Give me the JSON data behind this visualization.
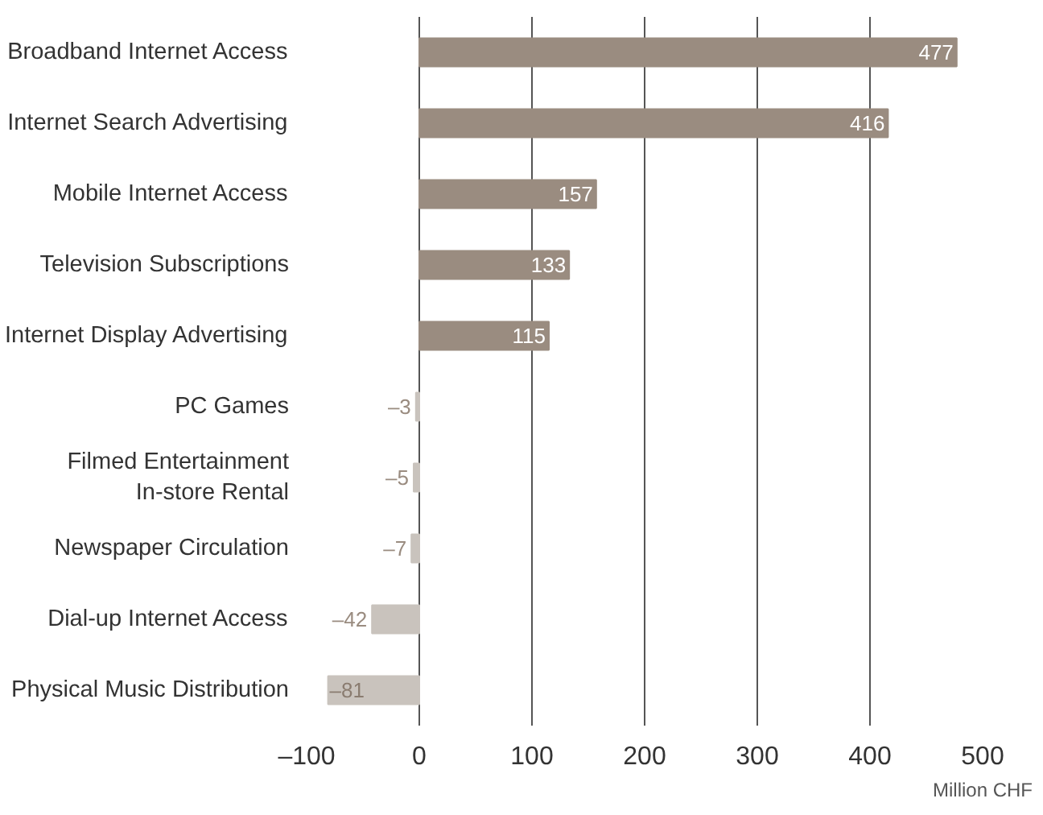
{
  "chart_data": {
    "type": "bar",
    "orientation": "horizontal",
    "categories": [
      "Broadband Internet Access",
      "Internet Search Advertising",
      "Mobile Internet Access",
      "Television Subscriptions",
      "Internet Display Advertising",
      "PC Games",
      "Filmed Entertainment\nIn-store Rental",
      "Newspaper Circulation",
      "Dial-up Internet Access",
      "Physical Music Distribution"
    ],
    "values": [
      477,
      416,
      157,
      133,
      115,
      -3,
      -5,
      -7,
      -42,
      -81
    ],
    "value_labels": [
      "477",
      "416",
      "157",
      "133",
      "115",
      "–3",
      "–5",
      "–7",
      "–42",
      "–81"
    ],
    "colors": [
      "#9a8c80",
      "#9a8c80",
      "#9a8c80",
      "#9a8c80",
      "#9a8c80",
      "#c9c3bd",
      "#c9c3bd",
      "#c9c3bd",
      "#c9c3bd",
      "#c9c3bd"
    ],
    "xlim": [
      -100,
      500
    ],
    "xticks": [
      {
        "value": -100,
        "label": "–100"
      },
      0,
      100,
      200,
      300,
      400,
      500
    ],
    "xlabel": "Million CHF",
    "grid": "x"
  }
}
